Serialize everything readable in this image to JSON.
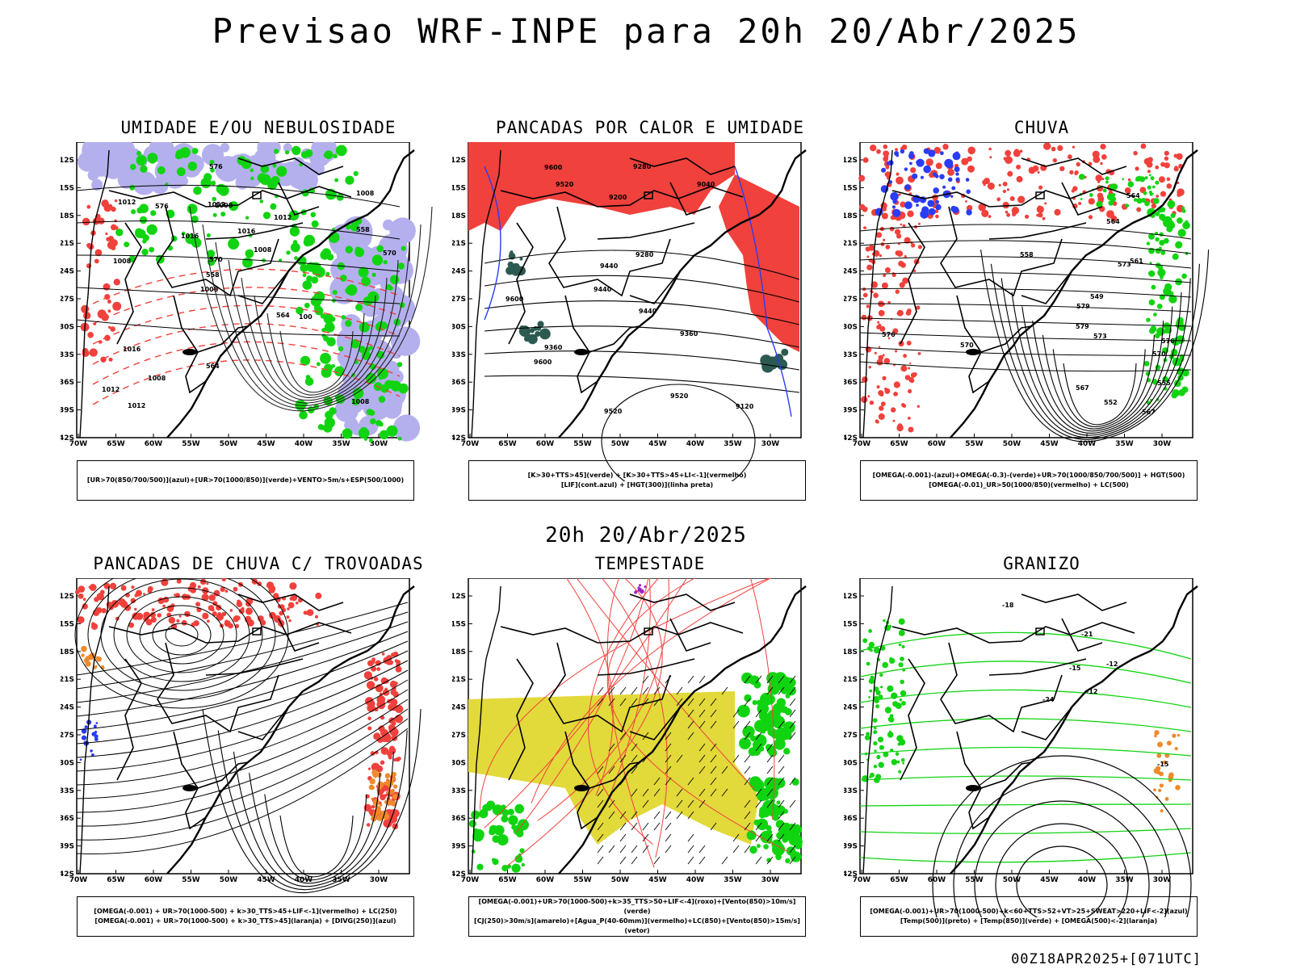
{
  "header": {
    "title": "Previsao WRF-INPE  para 20h 20/Abr/2025"
  },
  "mid_title": "20h 20/Abr/2025",
  "footer": "00Z18APR2025+[071UTC]",
  "axes": {
    "lat_labels": [
      "12S",
      "15S",
      "18S",
      "21S",
      "24S",
      "27S",
      "30S",
      "33S",
      "36S",
      "39S",
      "42S"
    ],
    "lon_labels": [
      "70W",
      "65W",
      "60W",
      "55W",
      "50W",
      "45W",
      "40W",
      "35W",
      "30W"
    ]
  },
  "colors": {
    "red": "#f0413c",
    "green": "#11d411",
    "blue": "#2a3cf5",
    "lavender": "#b4b0ee",
    "yellow": "#e2d93a",
    "orange": "#ef8a2c",
    "darkteal": "#2c5a50",
    "purple": "#9b22c8"
  },
  "panels": [
    {
      "title": "UMIDADE E/OU NEBULOSIDADE",
      "legend": [
        "[UR>70(850/700/500)](azul)+[UR>70(1000/850)](verde)+VENTO>5m/s+ESP(500/1000)"
      ],
      "labels": [
        "1008",
        "1008",
        "1008",
        "1008",
        "1012",
        "1012",
        "1012",
        "1016",
        "1016",
        "1016",
        "1012",
        "1008",
        "1008",
        "1008",
        "100",
        "1012",
        "576",
        "570",
        "564",
        "558",
        "558",
        "564",
        "570",
        "576"
      ]
    },
    {
      "title": "PANCADAS POR CALOR E UMIDADE",
      "legend": [
        "[K>30+TTS>45](verde) + [K>30+TTS>45+LI<-1](vermelho)",
        "[LIF](cont.azul) + [HGT(300)](linha preta)"
      ],
      "labels": [
        "9600",
        "9520",
        "9440",
        "9600",
        "9520",
        "9600",
        "9520",
        "9440",
        "9360",
        "9280",
        "9200",
        "9120",
        "9040",
        "9360",
        "9280",
        "9440"
      ]
    },
    {
      "title": "CHUVA",
      "legend": [
        "[OMEGA(-0.001)-(azul)+OMEGA(-0.3)-(verde)+UR>70(1000/850/700/500)] + HGT(500)",
        "[OMEGA(-0.01)_UR>50(1000/850)(vermelho) + LC(500)"
      ],
      "labels": [
        "579",
        "576",
        "573",
        "570",
        "567",
        "564",
        "561",
        "558",
        "555",
        "552",
        "549",
        "579",
        "576",
        "573",
        "570",
        "567",
        "564"
      ]
    },
    {
      "title": "PANCADAS DE CHUVA C/ TROVOADAS",
      "legend": [
        "[OMEGA(-0.001) + UR>70(1000-500) + k>30_TTS>45+LIF<-1](vermelho) + LC(250)",
        "[OMEGA(-0.001) + UR>70(1000-500) + k>30_TTS>45](laranja) + [DIVG(250)](azul)"
      ],
      "labels": []
    },
    {
      "title": "TEMPESTADE",
      "legend": [
        "[OMEGA(-0.001)+UR>70(1000-500)+k>35_TTS>50+LIF<-4](roxo)+[Vento(850)>10m/s](verde)",
        "[CJ(250)>30m/s](amarelo)+[Agua_P(40-60mm)](vermelho)+LC(850)+[Vento(850)>15m/s](vetor)"
      ],
      "labels": []
    },
    {
      "title": "GRANIZO",
      "legend": [
        "[OMEGA(-0.001)+UR>70(1000-500)+k<60+TTS>52+VT>25+SWEAT>220+LIF<-2](azul)",
        "[Temp(500)](preto) + [Temp(850)](verde) + [OMEGA(500)<-2](laranja)"
      ],
      "labels": [
        "-12",
        "-15",
        "-18",
        "-21",
        "-24",
        "-15",
        "-12"
      ]
    }
  ]
}
